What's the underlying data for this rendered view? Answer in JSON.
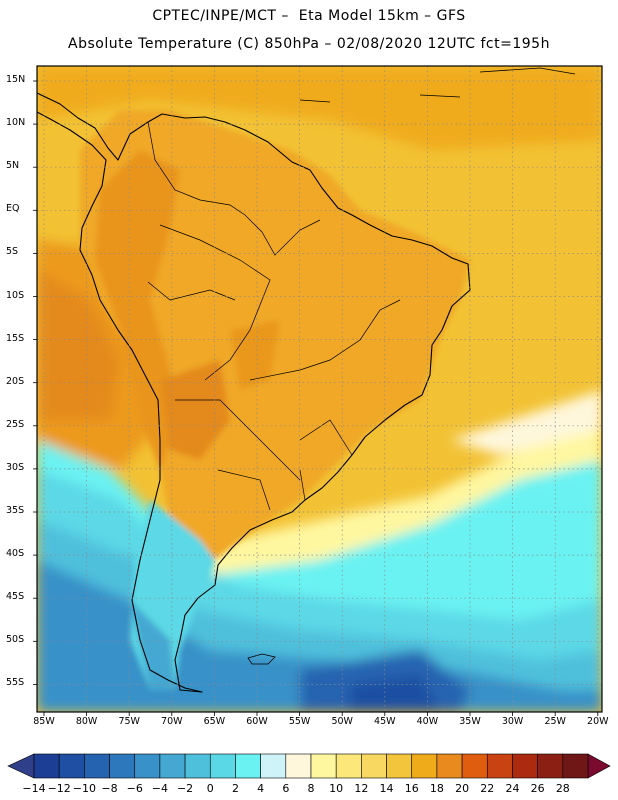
{
  "header": {
    "line1": "CPTEC/INPE/MCT –  Eta Model 15km – GFS",
    "line2": "Absolute Temperature (C) 850hPa – 02/08/2020 12UTC fct=195h"
  },
  "map": {
    "latitude_labels": [
      "15N",
      "10N",
      "5N",
      "EQ",
      "5S",
      "10S",
      "15S",
      "20S",
      "25S",
      "30S",
      "35S",
      "40S",
      "45S",
      "50S",
      "55S"
    ],
    "longitude_labels": [
      "85W",
      "80W",
      "75W",
      "70W",
      "65W",
      "60W",
      "55W",
      "50W",
      "45W",
      "40W",
      "35W",
      "30W",
      "25W",
      "20W"
    ],
    "land_color": "#f0a826",
    "ocean_color": "#f2c234"
  },
  "colorbar": {
    "labels": [
      "-14",
      "-12",
      "-10",
      "-8",
      "-6",
      "-4",
      "-2",
      "0",
      "2",
      "4",
      "6",
      "8",
      "10",
      "12",
      "14",
      "16",
      "18",
      "20",
      "22",
      "24",
      "26",
      "28"
    ],
    "colors": [
      "#1c3e94",
      "#1f4fa3",
      "#2563b0",
      "#2d78bd",
      "#3891c8",
      "#45a8d2",
      "#4fc0dc",
      "#5bd8e6",
      "#6af2f2",
      "#cef3f8",
      "#fff7dc",
      "#fff7a0",
      "#fbe77a",
      "#f8d860",
      "#f3c53c",
      "#f0ab1b",
      "#e88a1e",
      "#df5d0e",
      "#c94312",
      "#ab2a10",
      "#8c1f14",
      "#6f1616"
    ],
    "under_color": "#2f3f8a",
    "over_color": "#7a0a2e"
  }
}
